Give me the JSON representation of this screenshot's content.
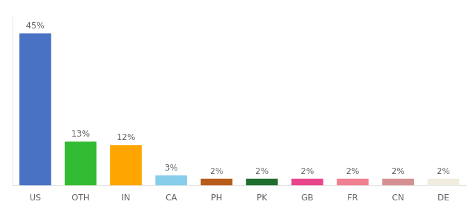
{
  "chart_data": {
    "type": "bar",
    "categories": [
      "US",
      "OTH",
      "IN",
      "CA",
      "PH",
      "PK",
      "GB",
      "FR",
      "CN",
      "DE"
    ],
    "values": [
      45,
      13,
      12,
      3,
      2,
      2,
      2,
      2,
      2,
      2
    ],
    "value_labels": [
      "45%",
      "13%",
      "12%",
      "3%",
      "2%",
      "2%",
      "2%",
      "2%",
      "2%",
      "2%"
    ],
    "colors": [
      "#4a72c4",
      "#33bb33",
      "#ffa500",
      "#87ceeb",
      "#b85c1a",
      "#1f6e2e",
      "#e8458a",
      "#f08090",
      "#d49090",
      "#f0ede0"
    ],
    "ylim": [
      0,
      50
    ],
    "data_labels": true,
    "tick_labels": "x",
    "grid": false
  }
}
